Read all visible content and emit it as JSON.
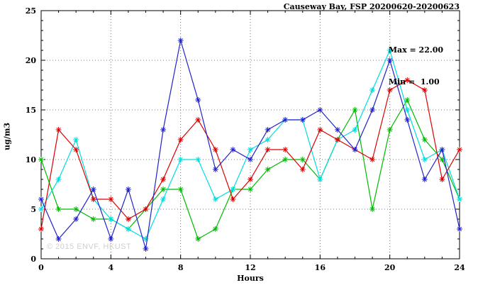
{
  "title": "Causeway Bay, FSP 20200620-20200623",
  "annotation": {
    "max": "Max = 22.00",
    "min": "Min =  1.00"
  },
  "watermark": "© 2015 ENVF, HKUST",
  "chart_data": {
    "type": "line",
    "title": "Causeway Bay, FSP 20200620-20200623",
    "xlabel": "Hours",
    "ylabel": "ug/m3",
    "xlim": [
      0,
      24
    ],
    "ylim": [
      0,
      25
    ],
    "xticks": [
      0,
      4,
      8,
      12,
      16,
      20,
      24
    ],
    "yticks": [
      0,
      5,
      10,
      15,
      20,
      25
    ],
    "grid": "dotted",
    "legend": "none",
    "marker": "asterisk",
    "x": [
      0,
      1,
      2,
      3,
      4,
      5,
      6,
      7,
      8,
      9,
      10,
      11,
      12,
      13,
      14,
      15,
      16,
      17,
      18,
      19,
      20,
      21,
      22,
      23,
      24
    ],
    "series": [
      {
        "name": "green",
        "color": "#00bb00",
        "values": [
          10,
          5,
          5,
          4,
          4,
          3,
          5,
          7,
          7,
          2,
          3,
          7,
          7,
          9,
          10,
          10,
          8,
          12,
          15,
          5,
          13,
          16,
          12,
          10,
          6
        ]
      },
      {
        "name": "cyan",
        "color": "#00dddd",
        "values": [
          5,
          8,
          12,
          6,
          4,
          3,
          2,
          6,
          10,
          10,
          6,
          7,
          11,
          12,
          14,
          14,
          8,
          12,
          13,
          17,
          21,
          15,
          10,
          11,
          6
        ]
      },
      {
        "name": "red",
        "color": "#dd0000",
        "values": [
          3,
          13,
          11,
          6,
          6,
          4,
          5,
          8,
          12,
          14,
          11,
          6,
          8,
          11,
          11,
          9,
          13,
          12,
          11,
          10,
          17,
          18,
          17,
          8,
          11
        ]
      },
      {
        "name": "blue",
        "color": "#2222cc",
        "values": [
          6,
          2,
          4,
          7,
          2,
          7,
          1,
          13,
          22,
          16,
          9,
          11,
          10,
          13,
          14,
          14,
          15,
          13,
          11,
          15,
          20,
          14,
          8,
          11,
          3
        ]
      }
    ],
    "stats": {
      "max": 22.0,
      "min": 1.0
    }
  }
}
